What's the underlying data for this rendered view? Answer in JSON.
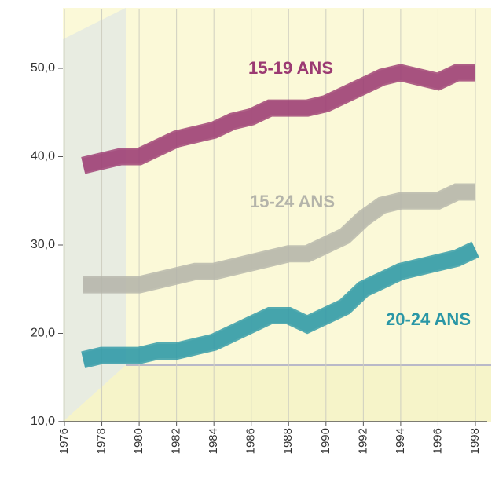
{
  "chart_data": {
    "type": "line",
    "x": [
      1977,
      1978,
      1979,
      1980,
      1981,
      1982,
      1983,
      1984,
      1985,
      1986,
      1987,
      1988,
      1989,
      1990,
      1991,
      1992,
      1993,
      1994,
      1995,
      1996,
      1997,
      1998
    ],
    "xlim": [
      1976,
      1998
    ],
    "xticks": [
      1976,
      1978,
      1980,
      1982,
      1984,
      1986,
      1988,
      1990,
      1992,
      1994,
      1996,
      1998
    ],
    "ylim": [
      10,
      54
    ],
    "yticks": [
      {
        "value": 10,
        "label": "10,0"
      },
      {
        "value": 20,
        "label": "20,0"
      },
      {
        "value": 30,
        "label": "30,0"
      },
      {
        "value": 40,
        "label": "40,0"
      },
      {
        "value": 50,
        "label": "50,0"
      }
    ],
    "grid": true,
    "series": [
      {
        "name": "15-19 ANS",
        "color": "#9b3a72",
        "values": [
          39,
          39.5,
          40,
          40,
          41,
          42,
          42.5,
          43,
          44,
          44.5,
          45.5,
          45.5,
          45.5,
          46,
          47,
          48,
          49,
          49.5,
          49,
          48.5,
          49.5,
          49.5
        ]
      },
      {
        "name": "15-24 ANS",
        "color": "#b4b4aa",
        "values": [
          25.5,
          25.5,
          25.5,
          25.5,
          26,
          26.5,
          27,
          27,
          27.5,
          28,
          28.5,
          29,
          29,
          30,
          31,
          33,
          34.5,
          35,
          35,
          35,
          36,
          36
        ]
      },
      {
        "name": "20-24 ANS",
        "color": "#2a97a6",
        "values": [
          17,
          17.5,
          17.5,
          17.5,
          18,
          18,
          18.5,
          19,
          20,
          21,
          22,
          22,
          21,
          22,
          23,
          25,
          26,
          27,
          27.5,
          28,
          28.5,
          29.5
        ]
      }
    ]
  }
}
